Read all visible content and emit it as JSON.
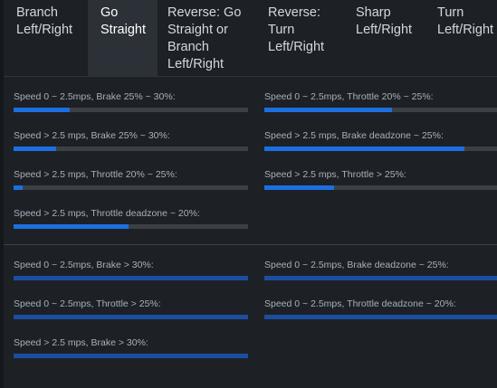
{
  "tabs": [
    {
      "label": [
        "Branch",
        "Left/Right"
      ],
      "active": false
    },
    {
      "label": [
        "Go",
        "Straight"
      ],
      "active": true
    },
    {
      "label": [
        "Reverse: Go",
        "Straight or",
        "Branch",
        "Left/Right"
      ],
      "active": false
    },
    {
      "label": [
        "Reverse:",
        "Turn",
        "Left/Right"
      ],
      "active": false
    },
    {
      "label": [
        "Sharp",
        "Left/Right"
      ],
      "active": false
    },
    {
      "label": [
        "Turn",
        "Left/Right"
      ],
      "active": false
    }
  ],
  "colors": {
    "fill_active": "#1c6fe0",
    "fill_dim": "#1b4ea0",
    "track": "#3b4046"
  },
  "sections": [
    {
      "left_column": [
        {
          "label": "Speed 0 ~ 2.5mps, Brake 25% ~ 30%:",
          "progress": 0.24
        },
        {
          "label": "Speed > 2.5 mps, Brake 25% ~ 30%:",
          "progress": 0.18
        },
        {
          "label": "Speed > 2.5 mps, Throttle 20% ~ 25%:",
          "progress": 0.04
        },
        {
          "label": "Speed > 2.5 mps, Throttle deadzone ~ 20%:",
          "progress": 0.49
        }
      ],
      "right_column": [
        {
          "label": "Speed 0 ~ 2.5mps, Throttle 20% ~ 25%:",
          "progress": 0.55
        },
        {
          "label": "Speed > 2.5 mps, Brake deadzone ~ 25%:",
          "progress": 0.86
        },
        {
          "label": "Speed > 2.5 mps, Throttle > 25%:",
          "progress": 0.3
        }
      ]
    },
    {
      "left_column": [
        {
          "label": "Speed 0 ~ 2.5mps, Brake > 30%:",
          "progress": 1.0
        },
        {
          "label": "Speed 0 ~ 2.5mps, Throttle > 25%:",
          "progress": 1.0
        },
        {
          "label": "Speed > 2.5 mps, Brake > 30%:",
          "progress": 1.0
        }
      ],
      "right_column": [
        {
          "label": "Speed 0 ~ 2.5mps, Brake deadzone ~ 25%:",
          "progress": 1.0
        },
        {
          "label": "Speed 0 ~ 2.5mps, Throttle deadzone ~ 20%:",
          "progress": 1.0
        }
      ]
    }
  ]
}
